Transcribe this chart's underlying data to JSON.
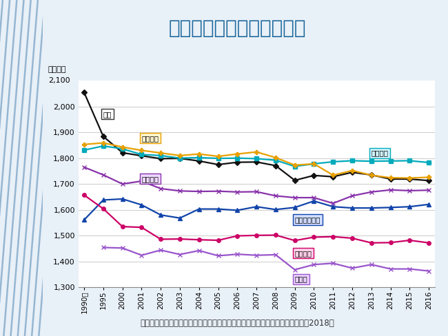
{
  "title": "各国の総実労働時間の推移",
  "ylabel": "（時間）",
  "source": "資料出所：独立行政法人労働政策研究・研修機構「データブック国際労働比較2018」",
  "years": [
    "1990年",
    "1995",
    "2000",
    "2001",
    "2002",
    "2003",
    "2004",
    "2005",
    "2006",
    "2007",
    "2008",
    "2009",
    "2010",
    "2011",
    "2012",
    "2013",
    "2014",
    "2015",
    "2016"
  ],
  "ylim": [
    1300,
    2100
  ],
  "yticks": [
    1300,
    1400,
    1500,
    1600,
    1700,
    1800,
    1900,
    2000
  ],
  "series": [
    {
      "name": "日本",
      "color": "#111111",
      "marker": "D",
      "markersize": 4,
      "linewidth": 1.6,
      "data": [
        2054,
        1884,
        1821,
        1809,
        1798,
        1799,
        1789,
        1775,
        1784,
        1785,
        1771,
        1714,
        1733,
        1728,
        1745,
        1735,
        1719,
        1719,
        1713
      ],
      "label": "日本",
      "label_xi": 1,
      "label_yi": 1970
    },
    {
      "name": "アメリカ",
      "color": "#00aabb",
      "marker": "s",
      "markersize": 4,
      "linewidth": 1.6,
      "data": [
        1831,
        1847,
        1836,
        1814,
        1810,
        1800,
        1802,
        1799,
        1800,
        1798,
        1792,
        1768,
        1778,
        1786,
        1790,
        1788,
        1789,
        1790,
        1783
      ],
      "label": "アメリカ",
      "label_xi": 15,
      "label_yi": 1820
    },
    {
      "name": "イタリア",
      "color": "#e8a000",
      "marker": "P",
      "markersize": 4,
      "linewidth": 1.6,
      "data": [
        1853,
        1859,
        1843,
        1830,
        1820,
        1810,
        1816,
        1807,
        1816,
        1824,
        1802,
        1773,
        1778,
        1734,
        1752,
        1734,
        1724,
        1723,
        1726
      ],
      "label": "イタリア",
      "label_xi": 3,
      "label_yi": 1877
    },
    {
      "name": "イギリス",
      "color": "#8833aa",
      "marker": "x",
      "markersize": 5,
      "linewidth": 1.6,
      "data": [
        1765,
        1735,
        1700,
        1711,
        1682,
        1673,
        1671,
        1672,
        1669,
        1670,
        1654,
        1647,
        1647,
        1625,
        1654,
        1669,
        1677,
        1674,
        1676
      ],
      "label": "イギリス",
      "label_xi": 3,
      "label_yi": 1720
    },
    {
      "name": "スウェーデン",
      "color": "#1144aa",
      "marker": "^",
      "markersize": 4,
      "linewidth": 1.6,
      "data": [
        1561,
        1638,
        1642,
        1619,
        1580,
        1568,
        1603,
        1603,
        1598,
        1612,
        1601,
        1609,
        1634,
        1612,
        1607,
        1607,
        1609,
        1612,
        1621
      ],
      "label": "スウェーデン",
      "label_xi": 11,
      "label_yi": 1562
    },
    {
      "name": "フランス",
      "color": "#cc0066",
      "marker": "o",
      "markersize": 4,
      "linewidth": 1.6,
      "data": [
        1657,
        1604,
        1535,
        1532,
        1486,
        1487,
        1484,
        1482,
        1499,
        1501,
        1502,
        1481,
        1494,
        1496,
        1490,
        1472,
        1473,
        1482,
        1472
      ],
      "label": "フランス",
      "label_xi": 11,
      "label_yi": 1432
    },
    {
      "name": "ドイツ",
      "color": "#9955cc",
      "marker": "x",
      "markersize": 5,
      "linewidth": 1.6,
      "data": [
        null,
        1454,
        1452,
        1424,
        1444,
        1427,
        1442,
        1422,
        1428,
        1424,
        1426,
        1368,
        1388,
        1393,
        1374,
        1388,
        1371,
        1371,
        1363
      ],
      "label": "ドイツ",
      "label_xi": 11,
      "label_yi": 1332
    }
  ],
  "bg_color": "#e8f0f8",
  "plot_bg": "#ffffff",
  "title_color": "#1a6699",
  "title_fontsize": 20,
  "grid_color": "#cccccc",
  "source_fontsize": 8.5,
  "box_colors": {
    "日本": "#ffffff",
    "アメリカ": "#d0f4ff",
    "イタリア": "#fff5cc",
    "イギリス": "#eed8ff",
    "スウェーデン": "#d0ddff",
    "フランス": "#ffd0e8",
    "ドイツ": "#ead0ff"
  },
  "border_colors": {
    "日本": "#333333",
    "アメリカ": "#00aabb",
    "イタリア": "#e8a000",
    "イギリス": "#8833aa",
    "スウェーデン": "#1144aa",
    "フランス": "#cc0066",
    "ドイツ": "#9955cc"
  }
}
